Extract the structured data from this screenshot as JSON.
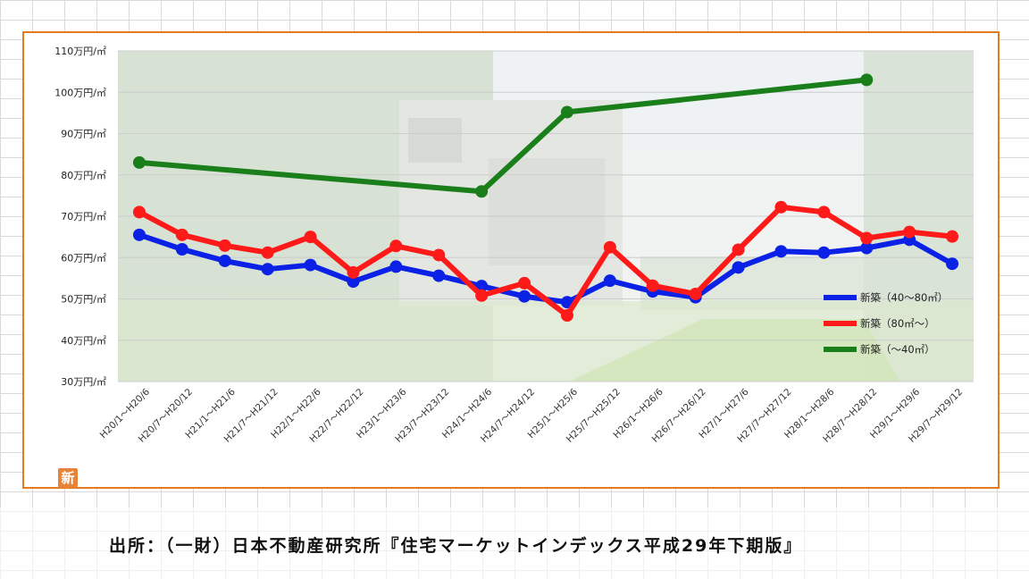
{
  "colors": {
    "frame": "#e07b1f",
    "series": [
      "#0b22e6",
      "#ff1a1a",
      "#1a7f1a"
    ],
    "badge": "#e8843a"
  },
  "badge_label": "新",
  "source": "出所：（一財）日本不動産研究所『住宅マーケットインデックス平成29年下期版』",
  "chart_data": {
    "type": "line",
    "title": "",
    "xlabel": "",
    "ylabel": "",
    "ylim": [
      30,
      110
    ],
    "yticks": [
      "30万円/㎡",
      "40万円/㎡",
      "50万円/㎡",
      "60万円/㎡",
      "70万円/㎡",
      "80万円/㎡",
      "90万円/㎡",
      "100万円/㎡",
      "110万円/㎡"
    ],
    "grid": true,
    "legend_position": "right",
    "categories": [
      "H20/1～H20/6",
      "H20/7～H20/12",
      "H21/1～H21/6",
      "H21/7～H21/12",
      "H22/1～H22/6",
      "H22/7～H22/12",
      "H23/1～H23/6",
      "H23/7～H23/12",
      "H24/1～H24/6",
      "H24/7～H24/12",
      "H25/1～H25/6",
      "H25/7～H25/12",
      "H26/1～H26/6",
      "H26/7～H26/12",
      "H27/1～H27/6",
      "H27/7～H27/12",
      "H28/1～H28/6",
      "H28/7～H28/12",
      "H29/1～H29/6",
      "H29/7～H29/12"
    ],
    "series": [
      {
        "name": "新築（40～80㎡）",
        "values": [
          65.5,
          62,
          59.2,
          57.2,
          58.2,
          54.2,
          57.8,
          55.6,
          53.1,
          50.6,
          49.2,
          54.4,
          51.8,
          50.4,
          57.6,
          61.5,
          61.2,
          62.3,
          64.3,
          58.5
        ]
      },
      {
        "name": "新築（80㎡～）",
        "values": [
          71,
          65.5,
          62.9,
          61.2,
          65,
          56.4,
          62.8,
          60.6,
          50.8,
          53.8,
          46,
          62.5,
          53.2,
          51.2,
          61.9,
          72.2,
          71,
          64.7,
          66.2,
          65.1
        ]
      },
      {
        "name": "新築（～40㎡）",
        "values": [
          83,
          null,
          null,
          null,
          null,
          null,
          null,
          null,
          76,
          null,
          95.2,
          null,
          null,
          null,
          null,
          null,
          null,
          103,
          null,
          null
        ]
      }
    ]
  }
}
